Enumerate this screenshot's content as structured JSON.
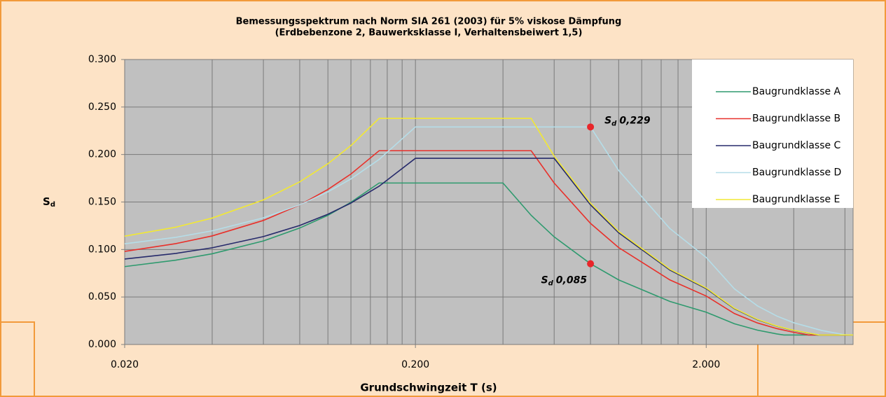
{
  "chart_data": {
    "type": "line",
    "title": [
      "Bemessungsspektrum nach Norm SIA 261 (2003) für 5% viskose Dämpfung",
      "(Erdbebenzone 2, Bauwerksklasse I, Verhaltensbeiwert 1,5)"
    ],
    "x_label": "Grundschwingzeit T (s)",
    "y_label": {
      "symbol": "S",
      "sub": "d"
    },
    "x_log": true,
    "xlim": [
      0.02,
      6.4
    ],
    "xticks": [
      {
        "value": 0.02,
        "label": "0.020"
      },
      {
        "value": 0.2,
        "label": "0.200"
      },
      {
        "value": 2,
        "label": "2.000"
      }
    ],
    "xminor": [
      0.04,
      0.06,
      0.08,
      0.1,
      0.12,
      0.14,
      0.16,
      0.18,
      0.4,
      0.6,
      0.8,
      1,
      1.2,
      1.4,
      1.6,
      1.8,
      4,
      6
    ],
    "ylim": [
      0,
      0.3
    ],
    "yticks": [
      {
        "value": 0,
        "label": "0.000"
      },
      {
        "value": 0.05,
        "label": "0.050"
      },
      {
        "value": 0.1,
        "label": "0.100"
      },
      {
        "value": 0.15,
        "label": "0.150"
      },
      {
        "value": 0.2,
        "label": "0.200"
      },
      {
        "value": 0.25,
        "label": "0.250"
      },
      {
        "value": 0.3,
        "label": "0.300"
      }
    ],
    "grid": true,
    "legend": "upper right",
    "series": [
      {
        "name": "Baugrundklasse A",
        "color": "#2e9a6e",
        "x": [
          0.02,
          0.03,
          0.04,
          0.06,
          0.08,
          0.1,
          0.12,
          0.15,
          0.4,
          0.5,
          0.6,
          0.8,
          1,
          1.5,
          2,
          2.5,
          3,
          3.5,
          3.7,
          6.4
        ],
        "values": [
          0.082,
          0.0888,
          0.0955,
          0.109,
          0.1226,
          0.136,
          0.1497,
          0.17,
          0.17,
          0.136,
          0.1133,
          0.085,
          0.068,
          0.0453,
          0.034,
          0.0218,
          0.0151,
          0.0111,
          0.01,
          0.01
        ]
      },
      {
        "name": "Baugrundklasse B",
        "color": "#e8302a",
        "x": [
          0.02,
          0.03,
          0.04,
          0.06,
          0.08,
          0.1,
          0.12,
          0.15,
          0.5,
          0.6,
          0.8,
          1,
          1.5,
          2,
          2.5,
          3,
          3.5,
          4,
          4.5,
          6.4
        ],
        "values": [
          0.098,
          0.1062,
          0.1143,
          0.1306,
          0.1469,
          0.1632,
          0.1795,
          0.204,
          0.204,
          0.17,
          0.1275,
          0.102,
          0.068,
          0.051,
          0.0326,
          0.0227,
          0.0167,
          0.0128,
          0.01,
          0.01
        ]
      },
      {
        "name": "Baugrundklasse C",
        "color": "#262a6b",
        "x": [
          0.02,
          0.03,
          0.04,
          0.06,
          0.08,
          0.1,
          0.12,
          0.15,
          0.2,
          0.6,
          0.8,
          1,
          1.5,
          2,
          2.5,
          3,
          3.5,
          4,
          4.85,
          6.4
        ],
        "values": [
          0.09,
          0.0959,
          0.1018,
          0.1136,
          0.1253,
          0.1371,
          0.1489,
          0.1666,
          0.196,
          0.196,
          0.147,
          0.1176,
          0.0784,
          0.0588,
          0.0376,
          0.0261,
          0.0192,
          0.0147,
          0.01,
          0.01
        ]
      },
      {
        "name": "Baugrundklasse D",
        "color": "#b5dde8",
        "x": [
          0.02,
          0.03,
          0.04,
          0.06,
          0.08,
          0.1,
          0.12,
          0.15,
          0.2,
          0.8,
          1,
          1.5,
          2,
          2.5,
          3,
          3.5,
          4,
          5,
          6,
          6.4
        ],
        "values": [
          0.106,
          0.1128,
          0.1197,
          0.1333,
          0.147,
          0.1607,
          0.1743,
          0.1948,
          0.229,
          0.229,
          0.1832,
          0.1221,
          0.0916,
          0.0586,
          0.0407,
          0.0299,
          0.0229,
          0.0147,
          0.0102,
          0.01
        ]
      },
      {
        "name": "Baugrundklasse E",
        "color": "#f2e833",
        "x": [
          0.02,
          0.03,
          0.04,
          0.06,
          0.08,
          0.1,
          0.12,
          0.15,
          0.5,
          0.6,
          0.8,
          1,
          1.5,
          2,
          2.5,
          3,
          3.5,
          4,
          4.88,
          6.4
        ],
        "values": [
          0.114,
          0.1235,
          0.1331,
          0.1522,
          0.1712,
          0.1903,
          0.2094,
          0.238,
          0.238,
          0.1983,
          0.1488,
          0.119,
          0.0793,
          0.0595,
          0.0381,
          0.0264,
          0.0194,
          0.0149,
          0.01,
          0.01
        ]
      }
    ],
    "annotations": [
      {
        "symbol": "S",
        "sub": "d",
        "text": "0,229",
        "x": 0.8,
        "y": 0.229,
        "color": "#e8262a"
      },
      {
        "symbol": "S",
        "sub": "d",
        "text": "0,085",
        "x": 0.8,
        "y": 0.085,
        "color": "#e8262a"
      }
    ]
  }
}
